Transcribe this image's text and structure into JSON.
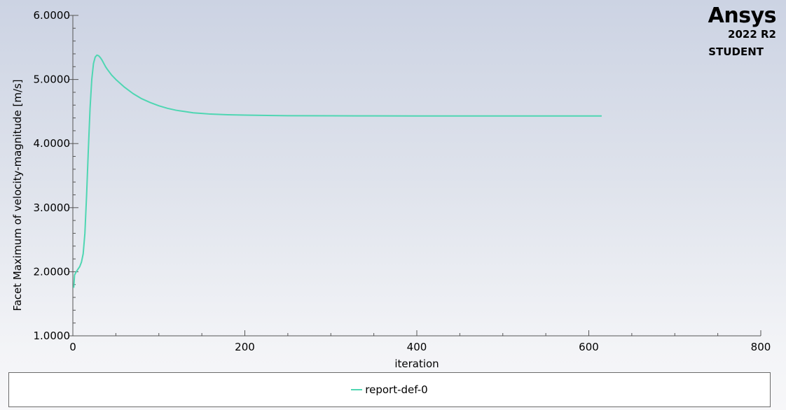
{
  "brand": {
    "name": "Ansys",
    "version": "2022 R2",
    "edition": "STUDENT"
  },
  "colors": {
    "series": "#4fd6b2",
    "axis": "#555555"
  },
  "chart_data": {
    "type": "line",
    "xlabel": "iteration",
    "ylabel": "Facet Maximum of velocity-magnitude [m/s]",
    "xlim": [
      0,
      800
    ],
    "ylim": [
      1.0,
      6.0
    ],
    "xticks": [
      0,
      200,
      400,
      600,
      800
    ],
    "xtick_labels": [
      "0",
      "200",
      "400",
      "600",
      "800"
    ],
    "yticks": [
      1.0,
      2.0,
      3.0,
      4.0,
      5.0,
      6.0
    ],
    "ytick_labels": [
      "1.0000",
      "2.0000",
      "3.0000",
      "4.0000",
      "5.0000",
      "6.0000"
    ],
    "grid": false,
    "legend_position": "bottom",
    "series": [
      {
        "name": "report-def-0",
        "x": [
          1,
          2,
          4,
          6,
          8,
          10,
          12,
          14,
          16,
          18,
          20,
          22,
          24,
          26,
          28,
          30,
          32,
          34,
          36,
          38,
          40,
          45,
          50,
          55,
          60,
          70,
          80,
          90,
          100,
          110,
          120,
          130,
          140,
          150,
          160,
          180,
          200,
          220,
          250,
          300,
          350,
          400,
          450,
          500,
          550,
          600,
          615
        ],
        "y": [
          1.75,
          1.95,
          2.0,
          2.04,
          2.08,
          2.15,
          2.28,
          2.6,
          3.2,
          3.9,
          4.55,
          5.0,
          5.25,
          5.35,
          5.38,
          5.37,
          5.34,
          5.3,
          5.25,
          5.2,
          5.16,
          5.07,
          5.0,
          4.94,
          4.88,
          4.78,
          4.7,
          4.64,
          4.59,
          4.55,
          4.52,
          4.5,
          4.48,
          4.47,
          4.46,
          4.45,
          4.445,
          4.44,
          4.435,
          4.433,
          4.432,
          4.431,
          4.431,
          4.431,
          4.431,
          4.431,
          4.431
        ]
      }
    ]
  }
}
